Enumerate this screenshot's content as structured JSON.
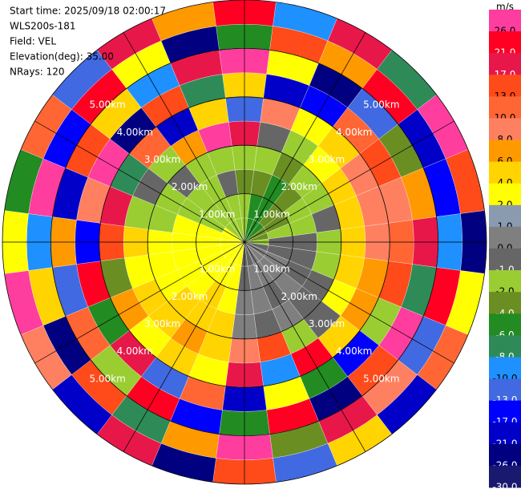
{
  "chart_data": {
    "type": "ppi",
    "header": [
      "Start time: 2025/09/18 02:00:17",
      "WLS200s-181",
      "Field: VEL",
      "Elevation(deg): 35.00",
      "NRays: 120"
    ],
    "azimuths": [
      0,
      15,
      30,
      45,
      60,
      75,
      90,
      105,
      120,
      135,
      150,
      165,
      180,
      195,
      210,
      225,
      240,
      255,
      270,
      285,
      300,
      315,
      330,
      345
    ],
    "r_edges": [
      0,
      0.5,
      1,
      1.5,
      2,
      2.5,
      3,
      3.5,
      4,
      4.5,
      5
    ],
    "values": [
      [
        -2,
        -2,
        -4,
        -2,
        17,
        -13,
        4,
        26,
        -6,
        21
      ],
      [
        -6,
        -6,
        -4,
        -2,
        -1,
        8,
        -21,
        2,
        13,
        -10
      ],
      [
        -6,
        -6,
        -6,
        -4,
        -2,
        2,
        -17,
        -26,
        6,
        17
      ],
      [
        -6,
        -4,
        -4,
        -2,
        2,
        4,
        10,
        -13,
        21,
        -8
      ],
      [
        -4,
        -4,
        -2,
        -2,
        4,
        8,
        13,
        -4,
        -21,
        26
      ],
      [
        -4,
        -2,
        -2,
        -1,
        4,
        8,
        8,
        6,
        -17,
        13
      ],
      [
        -2,
        -1,
        -1,
        -2,
        4,
        8,
        10,
        17,
        -10,
        -26
      ],
      [
        -1,
        -1,
        -1,
        -2,
        4,
        6,
        13,
        -8,
        21,
        2
      ],
      [
        0,
        0,
        -1,
        -1,
        2,
        6,
        -2,
        26,
        -13,
        10
      ],
      [
        0,
        0,
        0,
        -1,
        -1,
        4,
        -17,
        13,
        8,
        -21
      ],
      [
        0,
        0,
        -1,
        0,
        -2,
        21,
        -6,
        -26,
        17,
        4
      ],
      [
        -1,
        0,
        0,
        -1,
        13,
        -10,
        2,
        21,
        -4,
        -13
      ],
      [
        -1,
        -1,
        0,
        0,
        8,
        17,
        -21,
        -6,
        26,
        13
      ],
      [
        2,
        2,
        2,
        4,
        4,
        2,
        10,
        -17,
        6,
        -26
      ],
      [
        2,
        2,
        4,
        4,
        6,
        4,
        -13,
        21,
        -8,
        17
      ],
      [
        2,
        2,
        2,
        4,
        4,
        2,
        17,
        -2,
        13,
        -21
      ],
      [
        2,
        2,
        2,
        2,
        4,
        6,
        -6,
        10,
        -26,
        8
      ],
      [
        2,
        2,
        2,
        2,
        2,
        -4,
        21,
        -13,
        4,
        26
      ],
      [
        2,
        2,
        2,
        2,
        4,
        13,
        -17,
        6,
        -10,
        2
      ],
      [
        2,
        2,
        2,
        -2,
        -2,
        17,
        8,
        -21,
        26,
        -6
      ],
      [
        2,
        -2,
        -2,
        -2,
        -1,
        -8,
        26,
        13,
        -17,
        10
      ],
      [
        -2,
        -2,
        -2,
        -1,
        -2,
        10,
        -26,
        4,
        21,
        -13
      ],
      [
        -2,
        -2,
        -2,
        -2,
        6,
        -21,
        13,
        -10,
        2,
        17
      ],
      [
        -2,
        -2,
        -1,
        -2,
        26,
        4,
        -8,
        17,
        -26,
        6
      ]
    ],
    "range_rings": [
      {
        "value": 1,
        "label": "1.00km"
      },
      {
        "value": 2,
        "label": "2.00km"
      },
      {
        "value": 3,
        "label": "3.00km"
      },
      {
        "value": 4,
        "label": "4.00km"
      },
      {
        "value": 5,
        "label": "5.00km"
      }
    ],
    "colorbar": {
      "label": "m/s",
      "ticks": [
        {
          "value": 26,
          "label": "26.0"
        },
        {
          "value": 21,
          "label": "21.0"
        },
        {
          "value": 17,
          "label": "17.0"
        },
        {
          "value": 13,
          "label": "13.0"
        },
        {
          "value": 10,
          "label": "10.0"
        },
        {
          "value": 8,
          "label": "8.0"
        },
        {
          "value": 6,
          "label": "6.0"
        },
        {
          "value": 4,
          "label": "4.0"
        },
        {
          "value": 2,
          "label": "2.0"
        },
        {
          "value": 1,
          "label": "1.0"
        },
        {
          "value": 0,
          "label": "0.0"
        },
        {
          "value": -1,
          "label": "-1.0"
        },
        {
          "value": -2,
          "label": "-2.0"
        },
        {
          "value": -4,
          "label": "-4.0"
        },
        {
          "value": -6,
          "label": "-6.0"
        },
        {
          "value": -8,
          "label": "-8.0"
        },
        {
          "value": -10,
          "label": "-10.0"
        },
        {
          "value": -13,
          "label": "-13.0"
        },
        {
          "value": -17,
          "label": "-17.0"
        },
        {
          "value": -21,
          "label": "-21.0"
        },
        {
          "value": -26,
          "label": "-26.0"
        },
        {
          "value": -30,
          "label": "-30.0"
        }
      ],
      "colors": [
        "#ff3d9e",
        "#ff0022",
        "#e8174a",
        "#ff4a1a",
        "#ff6633",
        "#ff8060",
        "#ff9900",
        "#ffd400",
        "#ffff00",
        "#8a9bb0",
        "#7f7f7f",
        "#666666",
        "#9acd32",
        "#6b8e23",
        "#228b22",
        "#2e8b57",
        "#1e90ff",
        "#4169e1",
        "#0000ff",
        "#0000c8",
        "#000080",
        "#191970"
      ]
    }
  }
}
